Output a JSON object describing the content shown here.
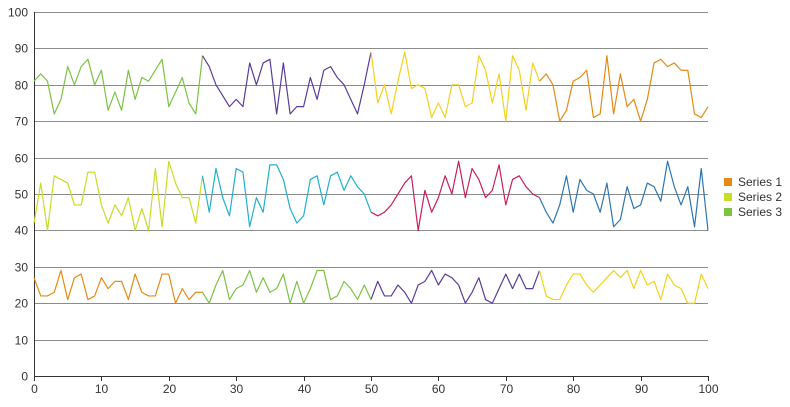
{
  "chart_data": {
    "type": "line",
    "title": "",
    "xlabel": "",
    "ylabel": "",
    "xlim": [
      0,
      100
    ],
    "ylim": [
      0,
      100
    ],
    "x_ticks": [
      0,
      10,
      20,
      30,
      40,
      50,
      60,
      70,
      80,
      90,
      100
    ],
    "y_ticks": [
      0,
      10,
      20,
      30,
      40,
      50,
      60,
      70,
      80,
      90,
      100
    ],
    "grid": "horizontal",
    "legend_position": "right",
    "segment_palette": [
      "#E68A17",
      "#C8DC28",
      "#7DC245",
      "#1FB0D0",
      "#5B3C9C",
      "#C91F5F",
      "#F3D21F",
      "#2E75B0"
    ],
    "series": [
      {
        "name": "Series 1",
        "color": "#E68A17",
        "x": [
          0,
          1,
          2,
          3,
          4,
          5,
          6,
          7,
          8,
          9,
          10,
          11,
          12,
          13,
          14,
          15,
          16,
          17,
          18,
          19,
          20,
          21,
          22,
          23,
          24,
          25,
          26,
          27,
          28,
          29,
          30,
          31,
          32,
          33,
          34,
          35,
          36,
          37,
          38,
          39,
          40,
          41,
          42,
          43,
          44,
          45,
          46,
          47,
          48,
          49,
          50,
          51,
          52,
          53,
          54,
          55,
          56,
          57,
          58,
          59,
          60,
          61,
          62,
          63,
          64,
          65,
          66,
          67,
          68,
          69,
          70,
          71,
          72,
          73,
          74,
          75,
          76,
          77,
          78,
          79,
          80,
          81,
          82,
          83,
          84,
          85,
          86,
          87,
          88,
          89,
          90,
          91,
          92,
          93,
          94,
          95,
          96,
          97,
          98,
          99,
          100
        ],
        "values": [
          27,
          22,
          22,
          23,
          29,
          21,
          27,
          28,
          21,
          22,
          27,
          24,
          26,
          26,
          21,
          28,
          23,
          22,
          22,
          28,
          28,
          20,
          24,
          21,
          23,
          23,
          20,
          25,
          29,
          21,
          24,
          25,
          29,
          23,
          27,
          23,
          24,
          28,
          20,
          26,
          20,
          24,
          29,
          29,
          21,
          22,
          26,
          24,
          21,
          25,
          21,
          26,
          22,
          22,
          25,
          23,
          20,
          25,
          26,
          29,
          25,
          28,
          27,
          25,
          20,
          23,
          27,
          21,
          20,
          24,
          28,
          24,
          28,
          24,
          24,
          29,
          22,
          21,
          21,
          25,
          28,
          28,
          25,
          23,
          25,
          27,
          29,
          27,
          29,
          24,
          29,
          25,
          26,
          21,
          28,
          25,
          24,
          20,
          20,
          28,
          24
        ]
      },
      {
        "name": "Series 2",
        "color": "#C8DC28",
        "x": [
          0,
          1,
          2,
          3,
          4,
          5,
          6,
          7,
          8,
          9,
          10,
          11,
          12,
          13,
          14,
          15,
          16,
          17,
          18,
          19,
          20,
          21,
          22,
          23,
          24,
          25,
          26,
          27,
          28,
          29,
          30,
          31,
          32,
          33,
          34,
          35,
          36,
          37,
          38,
          39,
          40,
          41,
          42,
          43,
          44,
          45,
          46,
          47,
          48,
          49,
          50,
          51,
          52,
          53,
          54,
          55,
          56,
          57,
          58,
          59,
          60,
          61,
          62,
          63,
          64,
          65,
          66,
          67,
          68,
          69,
          70,
          71,
          72,
          73,
          74,
          75,
          76,
          77,
          78,
          79,
          80,
          81,
          82,
          83,
          84,
          85,
          86,
          87,
          88,
          89,
          90,
          91,
          92,
          93,
          94,
          95,
          96,
          97,
          98,
          99,
          100
        ],
        "values": [
          42,
          53,
          40,
          55,
          54,
          53,
          47,
          47,
          56,
          56,
          47,
          42,
          47,
          44,
          49,
          40,
          46,
          40,
          57,
          41,
          59,
          53,
          49,
          49,
          42,
          55,
          45,
          57,
          49,
          44,
          57,
          56,
          41,
          49,
          45,
          58,
          58,
          54,
          46,
          42,
          44,
          54,
          55,
          47,
          55,
          56,
          51,
          55,
          52,
          50,
          45,
          44,
          45,
          47,
          50,
          53,
          55,
          40,
          51,
          45,
          49,
          55,
          50,
          59,
          49,
          57,
          54,
          49,
          51,
          58,
          47,
          54,
          55,
          52,
          50,
          49,
          45,
          42,
          47,
          55,
          45,
          54,
          51,
          50,
          45,
          53,
          41,
          43,
          52,
          46,
          47,
          53,
          52,
          48,
          59,
          52,
          47,
          52,
          41,
          57,
          40
        ]
      },
      {
        "name": "Series 3",
        "color": "#7DC245",
        "x": [
          0,
          1,
          2,
          3,
          4,
          5,
          6,
          7,
          8,
          9,
          10,
          11,
          12,
          13,
          14,
          15,
          16,
          17,
          18,
          19,
          20,
          21,
          22,
          23,
          24,
          25,
          26,
          27,
          28,
          29,
          30,
          31,
          32,
          33,
          34,
          35,
          36,
          37,
          38,
          39,
          40,
          41,
          42,
          43,
          44,
          45,
          46,
          47,
          48,
          49,
          50,
          51,
          52,
          53,
          54,
          55,
          56,
          57,
          58,
          59,
          60,
          61,
          62,
          63,
          64,
          65,
          66,
          67,
          68,
          69,
          70,
          71,
          72,
          73,
          74,
          75,
          76,
          77,
          78,
          79,
          80,
          81,
          82,
          83,
          84,
          85,
          86,
          87,
          88,
          89,
          90,
          91,
          92,
          93,
          94,
          95,
          96,
          97,
          98,
          99,
          100
        ],
        "values": [
          81,
          83,
          81,
          72,
          76,
          85,
          80,
          85,
          87,
          80,
          84,
          73,
          78,
          73,
          84,
          76,
          82,
          81,
          84,
          87,
          74,
          78,
          82,
          75,
          72,
          88,
          85,
          80,
          77,
          74,
          76,
          74,
          86,
          80,
          86,
          87,
          72,
          86,
          72,
          74,
          74,
          82,
          76,
          84,
          85,
          82,
          80,
          76,
          72,
          80,
          89,
          75,
          80,
          72,
          81,
          89,
          79,
          80,
          79,
          71,
          75,
          71,
          80,
          80,
          74,
          75,
          88,
          84,
          75,
          83,
          70,
          88,
          84,
          73,
          86,
          81,
          83,
          80,
          70,
          73,
          81,
          82,
          84,
          71,
          72,
          88,
          72,
          83,
          74,
          76,
          70,
          76,
          86,
          87,
          85,
          86,
          84,
          84,
          72,
          71,
          74
        ]
      }
    ]
  }
}
